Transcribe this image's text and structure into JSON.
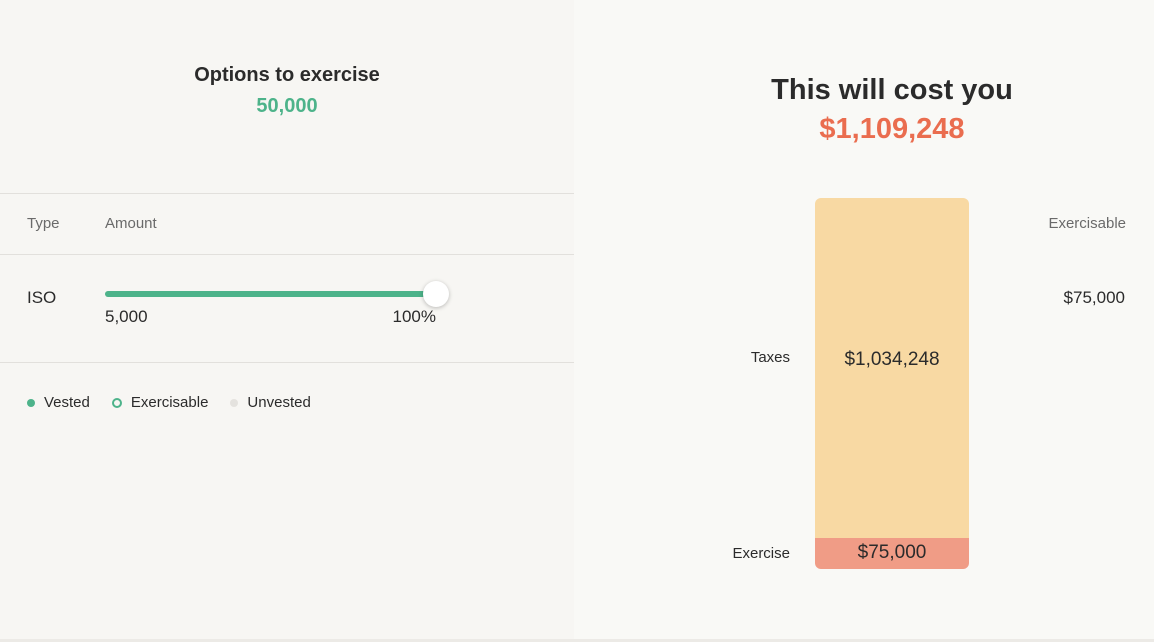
{
  "left": {
    "title": "Options to exercise",
    "options_count": "50,000",
    "columns": {
      "type": "Type",
      "amount": "Amount",
      "exercisable": "Exercisable"
    },
    "row": {
      "type": "ISO",
      "amount_min": "5,000",
      "amount_percent": "100%",
      "slider_value_fraction": 1.0,
      "exercisable": "$75,000"
    },
    "legend": [
      {
        "label": "Vested",
        "style": "filled",
        "color": "#4db38a"
      },
      {
        "label": "Exercisable",
        "style": "outline",
        "color": "#4db38a"
      },
      {
        "label": "Unvested",
        "style": "filled",
        "color": "#e4e2de"
      }
    ]
  },
  "right": {
    "title": "This will cost you",
    "total_cost": "$1,109,248",
    "bar": {
      "segments": [
        {
          "category": "Taxes",
          "value_label": "$1,034,248",
          "value": 1034248,
          "color": "#f8d9a3"
        },
        {
          "category": "Exercise",
          "value_label": "$75,000",
          "value": 75000,
          "color": "#f09c86"
        }
      ]
    }
  },
  "colors": {
    "accent_green": "#4db38a",
    "accent_coral": "#ea6d4f"
  }
}
